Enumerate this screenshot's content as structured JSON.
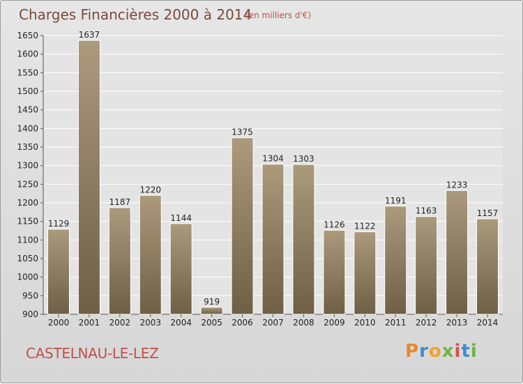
{
  "chart_data": {
    "type": "bar",
    "title": "Charges Financières 2000 à 2014",
    "subtitle": "(en milliers d'€)",
    "xlabel": "",
    "ylabel": "",
    "categories": [
      "2000",
      "2001",
      "2002",
      "2003",
      "2004",
      "2005",
      "2006",
      "2007",
      "2008",
      "2009",
      "2010",
      "2011",
      "2012",
      "2013",
      "2014"
    ],
    "values": [
      1129,
      1637,
      1187,
      1220,
      1144,
      919,
      1375,
      1304,
      1303,
      1126,
      1122,
      1191,
      1163,
      1233,
      1157
    ],
    "ylim": [
      900,
      1650
    ],
    "yticks": [
      900,
      950,
      1000,
      1050,
      1100,
      1150,
      1200,
      1250,
      1300,
      1350,
      1400,
      1450,
      1500,
      1550,
      1600,
      1650
    ],
    "grid": true,
    "colors": {
      "bar_light": "#ab9a7c",
      "bar_dark": "#6e5f45",
      "title": "#7a4a3c",
      "subtitle": "#c0504d"
    }
  },
  "footer": {
    "commune": "CASTELNAU-LE-LEZ",
    "logo_parts": [
      "P",
      "r",
      "o",
      "x",
      "i",
      "t",
      "i"
    ]
  }
}
